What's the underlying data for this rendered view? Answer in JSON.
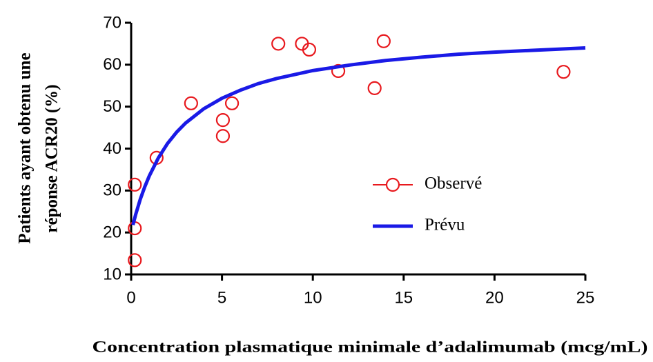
{
  "chart_data": {
    "type": "scatter",
    "y_label": [
      "Patients ayant obtenu une",
      "réponse ACR20 (%)"
    ],
    "x_label": "Concentration plasmatique minimale d’adalimumab (mcg/mL)",
    "xlim": [
      0,
      25
    ],
    "xticks": [
      0,
      5,
      10,
      15,
      20,
      25
    ],
    "ylim": [
      10,
      70
    ],
    "yticks": [
      10,
      20,
      30,
      40,
      50,
      60,
      70
    ],
    "grid": false,
    "legend": "center right",
    "series": [
      {
        "name": "Observé",
        "type": "scatter",
        "color": "#e8191e",
        "x": [
          0.2,
          0.2,
          0.2,
          1.4,
          3.3,
          5.05,
          5.05,
          5.55,
          8.1,
          9.4,
          9.8,
          11.4,
          13.4,
          13.9,
          23.8
        ],
        "values": [
          13.4,
          21,
          31.4,
          37.8,
          50.8,
          46.8,
          43,
          50.8,
          65,
          65,
          63.6,
          58.5,
          54.4,
          65.6,
          58.3
        ]
      },
      {
        "name": "Prévu",
        "type": "line",
        "color": "#1a1ae6",
        "x": [
          0.1,
          0.25,
          0.5,
          0.75,
          1,
          1.5,
          2,
          2.5,
          3,
          4,
          5,
          6,
          7,
          8,
          10,
          12,
          14,
          16,
          18,
          20,
          22,
          25
        ],
        "values": [
          21.8,
          24.3,
          27.9,
          30.9,
          33.5,
          37.8,
          41.2,
          43.9,
          46.1,
          49.5,
          52.0,
          53.9,
          55.5,
          56.7,
          58.6,
          59.9,
          61.0,
          61.8,
          62.5,
          63.0,
          63.4,
          64.0
        ]
      }
    ]
  }
}
